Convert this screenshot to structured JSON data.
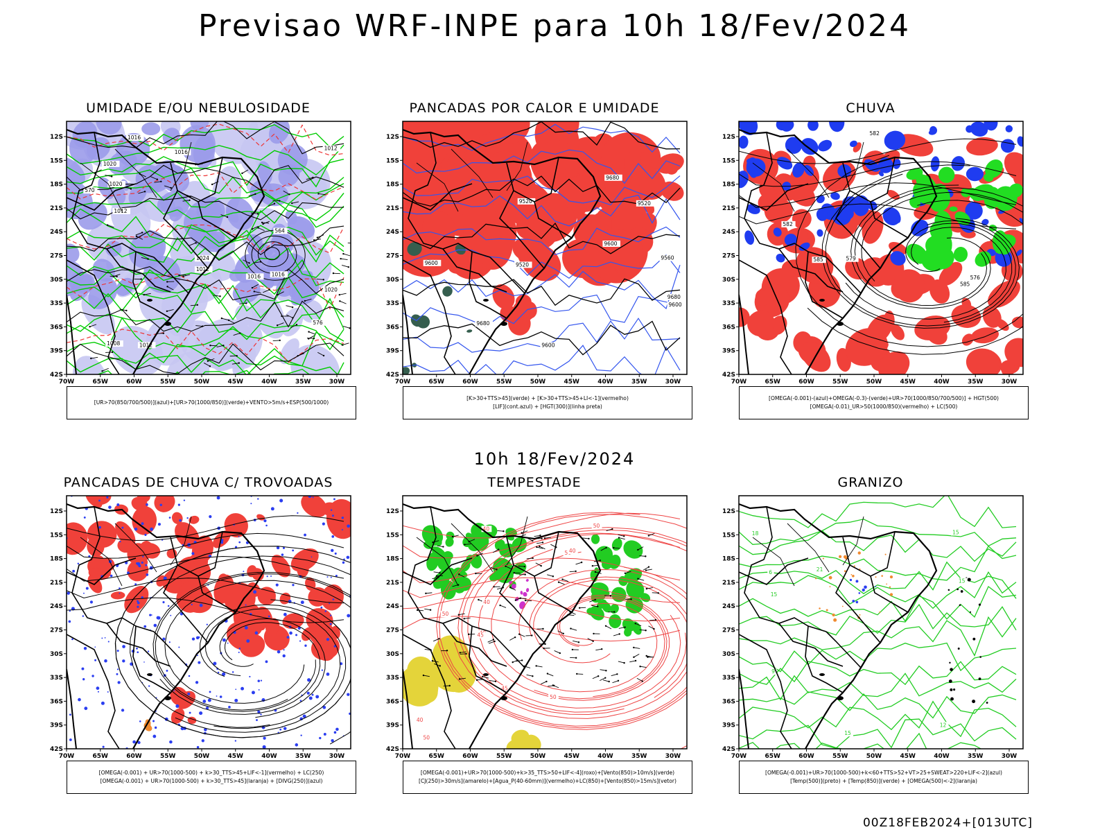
{
  "header": {
    "title": "Previsao WRF-INPE  para 10h 18/Fev/2024"
  },
  "mid_time": "10h 18/Fev/2024",
  "run_info": "00Z18FEB2024+[013UTC]",
  "axes": {
    "lat_labels": [
      "12S",
      "15S",
      "18S",
      "21S",
      "24S",
      "27S",
      "30S",
      "33S",
      "36S",
      "39S",
      "42S"
    ],
    "lon_labels": [
      "70W",
      "65W",
      "60W",
      "55W",
      "50W",
      "45W",
      "40W",
      "35W",
      "30W"
    ]
  },
  "panels": [
    {
      "id": "umidade",
      "title": "UMIDADE E/OU NEBULOSIDADE",
      "caption": [
        "[UR>70(850/700/500)](azul)+[UR>70(1000/850)](verde)+VENTO>5m/s+ESP(500/1000)"
      ],
      "colors": {
        "fill1": "#9b9bea",
        "fill2": "#c6c6f2",
        "contour": "#00cc00",
        "contour2": "#ee3333",
        "line": "#000000"
      },
      "contour_labels": [
        "1012",
        "1012",
        "1016",
        "1020",
        "1016",
        "1012",
        "1016",
        "1008",
        "1012",
        "1016",
        "1020",
        "1024",
        "1020",
        "564",
        "570",
        "576"
      ]
    },
    {
      "id": "pancadas_calor",
      "title": "PANCADAS POR CALOR E UMIDADE",
      "caption": [
        "[K>30+TTS>45](verde) + [K>30+TTS>45+LI<-1](vermelho)",
        "[LIF](cont.azul) + [HGT(300)](linha preta)"
      ],
      "colors": {
        "fill1": "#f0413a",
        "fill2": "#355e4e",
        "contour": "#3355ee",
        "line": "#000000"
      },
      "contour_labels": [
        "9680",
        "9680",
        "9600",
        "9520",
        "9680",
        "9600",
        "9560",
        "9520",
        "9600",
        "9600",
        "9520"
      ]
    },
    {
      "id": "chuva",
      "title": "CHUVA",
      "caption": [
        "[OMEGA(-0.001)-(azul)+OMEGA(-0.3)-(verde)+UR>70(1000/850/700/500)] + HGT(500)",
        "[OMEGA(-0.01)_UR>50(1000/850)(vermelho) + LC(500)"
      ],
      "colors": {
        "fill1": "#f0413a",
        "fill2": "#1f3cf0",
        "fill3": "#22dd22",
        "line": "#000000"
      },
      "contour_labels": [
        "585",
        "582",
        "579",
        "576",
        "585",
        "582"
      ]
    },
    {
      "id": "trovoadas",
      "title": "PANCADAS DE CHUVA C/ TROVOADAS",
      "caption": [
        "[OMEGA(-0.001) + UR>70(1000-500) + k>30_TTS>45+LIF<-1](vermelho) + LC(250)",
        "[OMEGA(-0.001) + UR>70(1000-500) + k>30_TTS>45](laranja) + [DIVG(250)](azul)"
      ],
      "colors": {
        "fill1": "#f0413a",
        "fill2": "#2b3ef0",
        "fill3": "#f08a30",
        "line": "#000000"
      },
      "contour_labels": []
    },
    {
      "id": "tempestade",
      "title": "TEMPESTADE",
      "caption": [
        "[OMEGA(-0.001)+UR>70(1000-500)+k>35_TTS>50+LIF<-4](roxo)+[Vento(850)>10m/s](verde)",
        "[CJ(250)>30m/s](amarelo)+[Agua_P(40-60mm)](vermelho)+LC(850)+[Vento(850)>15m/s](vetor)"
      ],
      "colors": {
        "fill1": "#e4d43a",
        "fill2": "#22cc22",
        "contour": "#ee4444",
        "fill3": "#cc33cc",
        "line": "#000000"
      },
      "contour_labels": [
        "40",
        "50",
        "50",
        "45",
        "40",
        "50",
        "40",
        "45",
        "50",
        "50",
        "40",
        "40"
      ]
    },
    {
      "id": "granizo",
      "title": "GRANIZO",
      "caption": [
        "[OMEGA(-0.001)+UR>70(1000-500)+k<60+TTS>52+VT>25+SWEAT>220+LIF<-2](azul)",
        "[Temp(500)](preto) + [Temp(850)](verde) + [OMEGA(500)<-2](laranja)"
      ],
      "colors": {
        "contour": "#22cc22",
        "fill3": "#f08a30",
        "fill2": "#2b3ef0",
        "line": "#000000"
      },
      "contour_labels": [
        "21",
        "18",
        "15",
        "15",
        "15",
        "12",
        "9",
        "6",
        "15"
      ]
    }
  ]
}
